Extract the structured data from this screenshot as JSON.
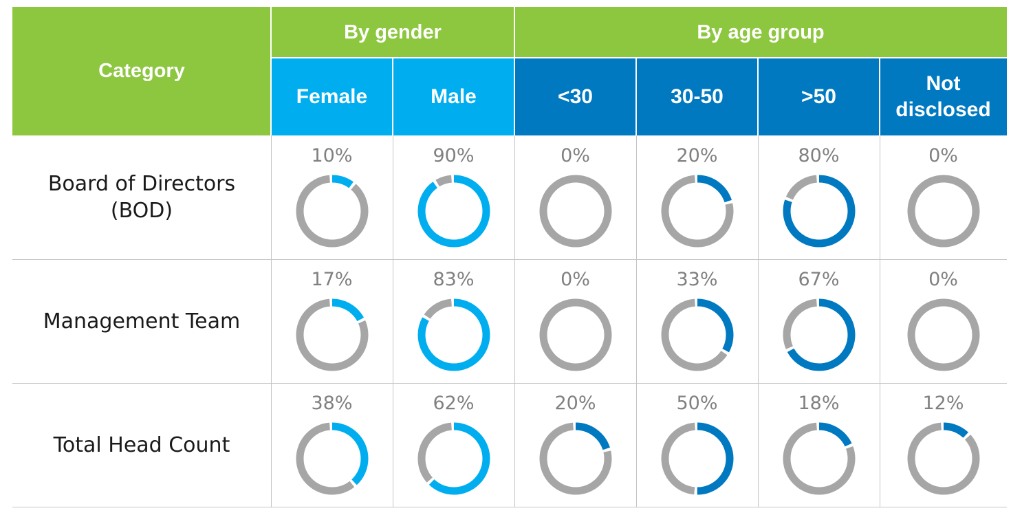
{
  "header": {
    "category": "Category",
    "by_gender": "By gender",
    "by_age_group": "By age group",
    "columns": [
      "Female",
      "Male",
      "<30",
      "30-50",
      ">50",
      "Not disclosed"
    ]
  },
  "colors": {
    "header_green": "#8dc63f",
    "gender_fill": "#00aeef",
    "age_fill": "#0079c1",
    "ring_background": "#a6a6a6"
  },
  "chart_data": {
    "type": "donut",
    "column_groups": [
      {
        "name": "By gender",
        "columns": [
          "Female",
          "Male"
        ]
      },
      {
        "name": "By age group",
        "columns": [
          "<30",
          "30-50",
          ">50",
          "Not disclosed"
        ]
      }
    ],
    "categories": [
      "Female",
      "Male",
      "<30",
      "30-50",
      ">50",
      "Not disclosed"
    ],
    "rows": [
      {
        "label": "Board of Directors (BOD)",
        "values": [
          10,
          90,
          0,
          20,
          80,
          0
        ]
      },
      {
        "label": "Management Team",
        "values": [
          17,
          83,
          0,
          33,
          67,
          0
        ]
      },
      {
        "label": "Total Head Count",
        "values": [
          38,
          62,
          20,
          50,
          18,
          12
        ]
      }
    ],
    "unit": "%"
  }
}
